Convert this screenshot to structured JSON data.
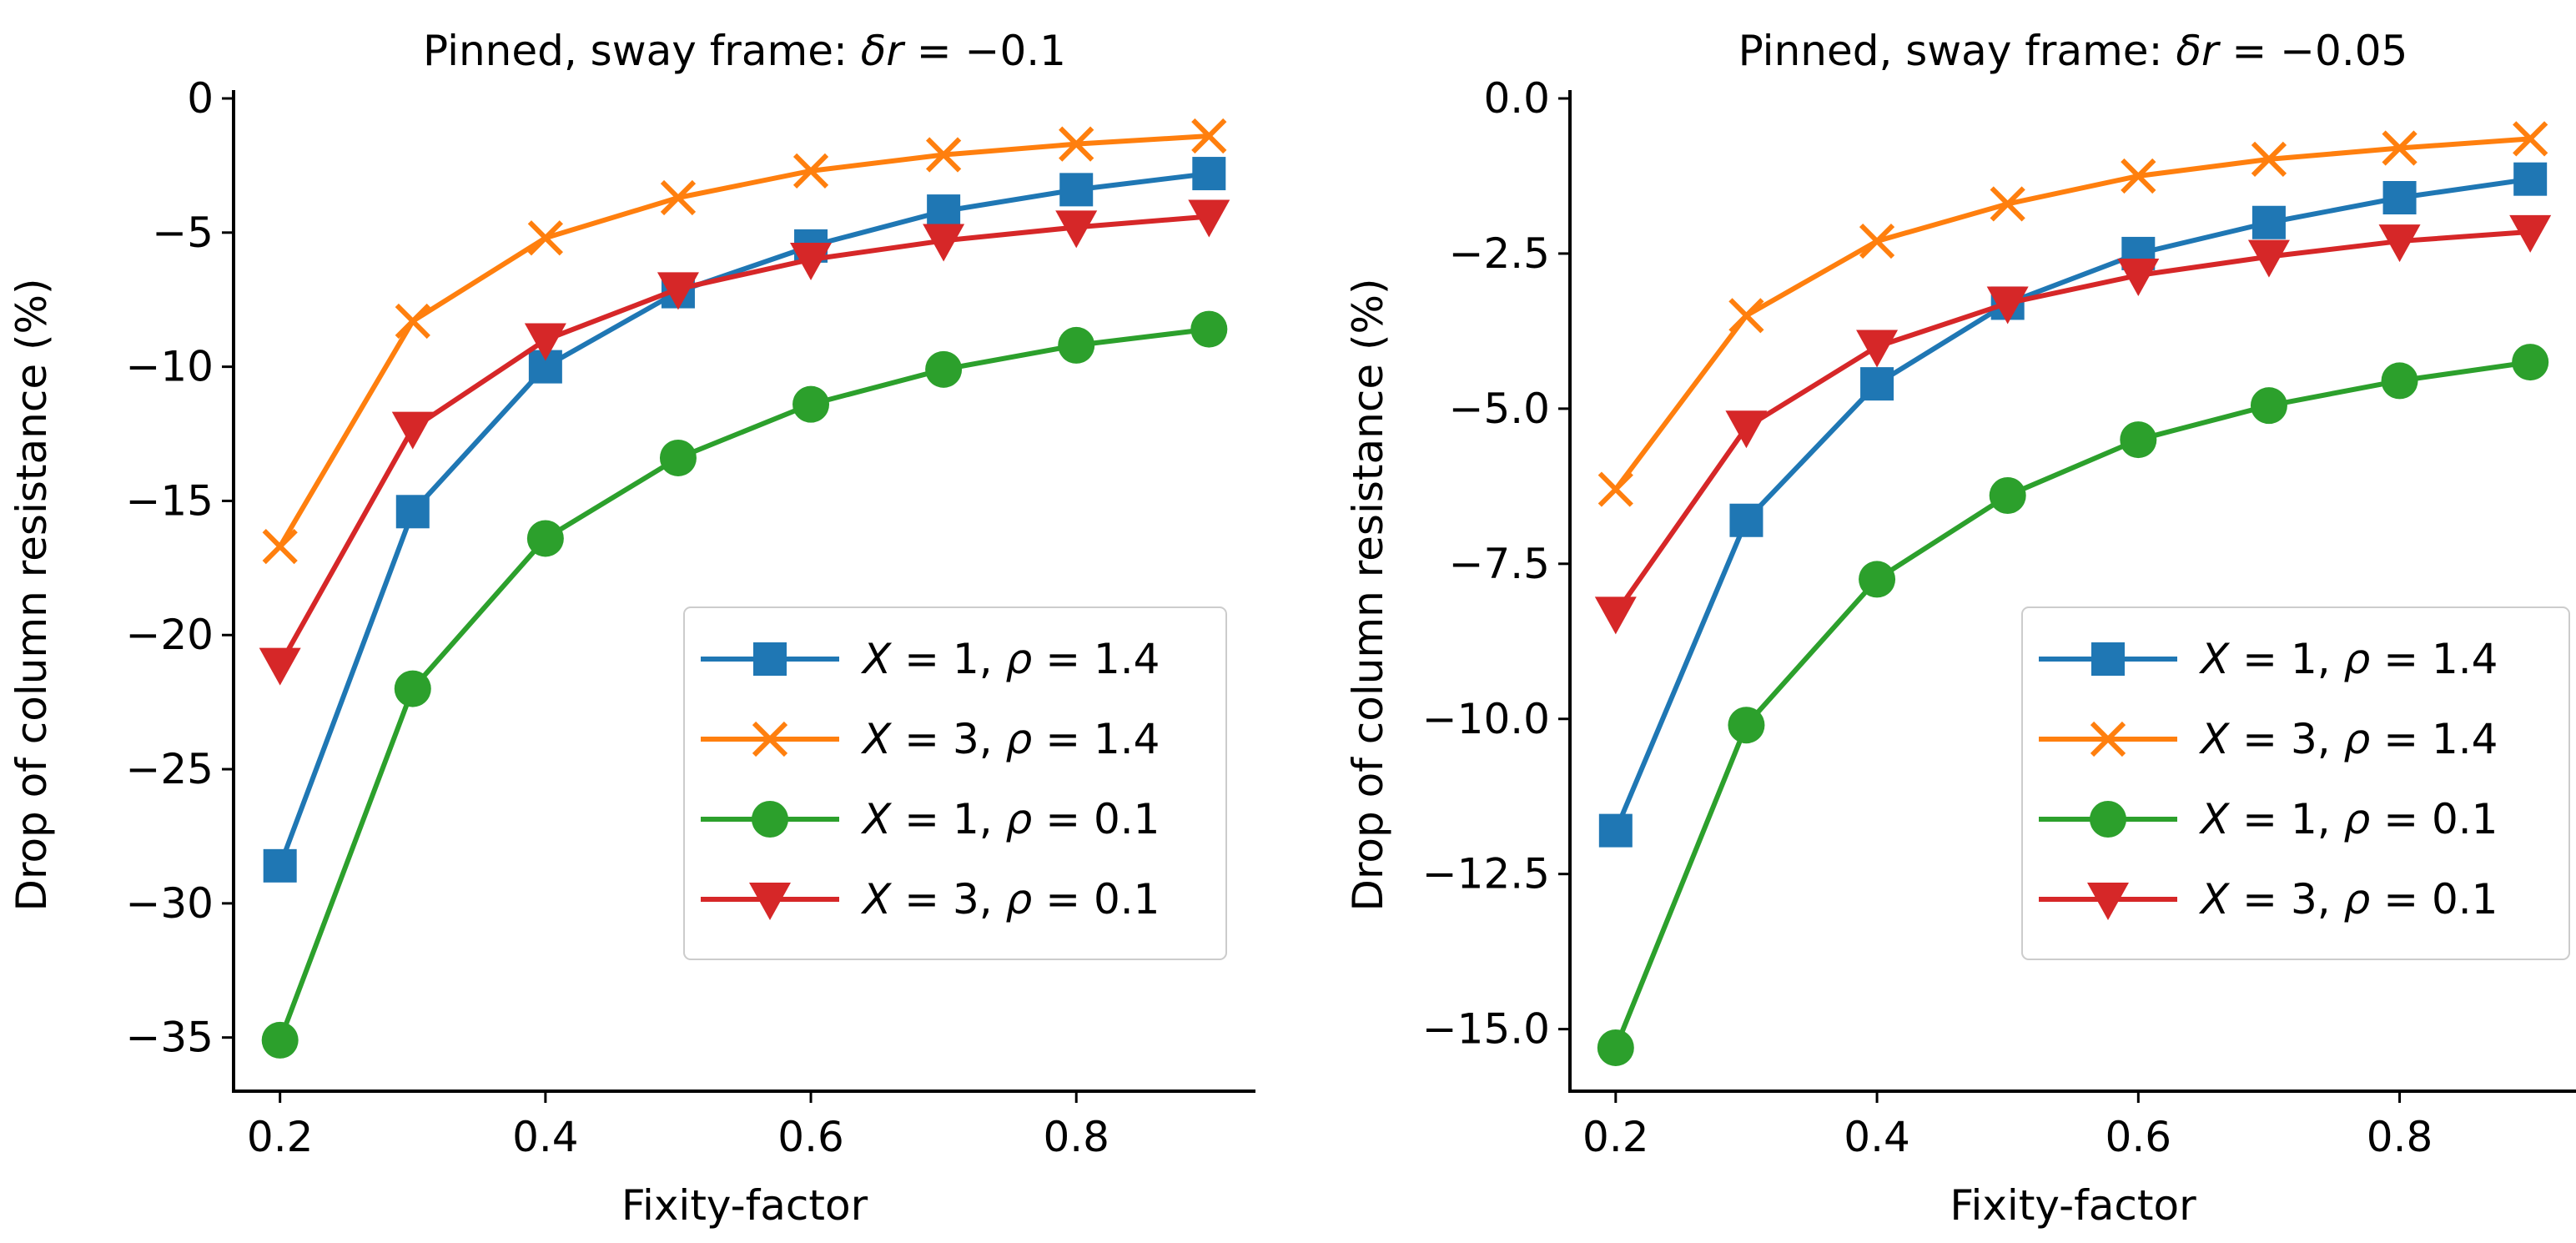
{
  "chart_data": [
    {
      "type": "line",
      "title_prefix": "Pinned, sway frame: ",
      "title_var": "δr",
      "title_suffix": " = −0.1",
      "xlabel": "Fixity-factor",
      "ylabel": "Drop of column resistance (%)",
      "xlim": [
        0.165,
        0.935
      ],
      "ylim": [
        -37,
        0
      ],
      "xticks": [
        0.2,
        0.4,
        0.6,
        0.8
      ],
      "xtick_labels": [
        "0.2",
        "0.4",
        "0.6",
        "0.8"
      ],
      "yticks": [
        0,
        -5,
        -10,
        -15,
        -20,
        -25,
        -30,
        -35
      ],
      "ytick_labels": [
        "0",
        "−5",
        "−10",
        "−15",
        "−20",
        "−25",
        "−30",
        "−35"
      ],
      "legend_position": "lower-right",
      "x": [
        0.2,
        0.3,
        0.4,
        0.5,
        0.6,
        0.7,
        0.8,
        0.9
      ],
      "series": [
        {
          "var1": "X",
          "val1": " = 1, ",
          "var2": "ρ",
          "val2": " = 1.4",
          "color": "#1f77b4",
          "marker": "square",
          "values": [
            -28.6,
            -15.4,
            -10.0,
            -7.2,
            -5.5,
            -4.2,
            -3.4,
            -2.8
          ]
        },
        {
          "var1": "X",
          "val1": " = 3, ",
          "var2": "ρ",
          "val2": " = 1.4",
          "color": "#ff7f0e",
          "marker": "x",
          "values": [
            -16.7,
            -8.3,
            -5.2,
            -3.7,
            -2.7,
            -2.1,
            -1.7,
            -1.4
          ]
        },
        {
          "var1": "X",
          "val1": " = 1, ",
          "var2": "ρ",
          "val2": " = 0.1",
          "color": "#2ca02c",
          "marker": "circle",
          "values": [
            -35.1,
            -22.0,
            -16.4,
            -13.4,
            -11.4,
            -10.1,
            -9.2,
            -8.6
          ]
        },
        {
          "var1": "X",
          "val1": " = 3, ",
          "var2": "ρ",
          "val2": " = 0.1",
          "color": "#d62728",
          "marker": "triangle-down",
          "values": [
            -21.1,
            -12.3,
            -9.0,
            -7.1,
            -6.0,
            -5.3,
            -4.8,
            -4.4
          ]
        }
      ]
    },
    {
      "type": "line",
      "title_prefix": "Pinned, sway frame: ",
      "title_var": "δr",
      "title_suffix": " = −0.05",
      "xlabel": "Fixity-factor",
      "ylabel": "Drop of column resistance (%)",
      "xlim": [
        0.165,
        0.935
      ],
      "ylim": [
        -16,
        0
      ],
      "xticks": [
        0.2,
        0.4,
        0.6,
        0.8
      ],
      "xtick_labels": [
        "0.2",
        "0.4",
        "0.6",
        "0.8"
      ],
      "yticks": [
        0,
        -2.5,
        -5,
        -7.5,
        -10,
        -12.5,
        -15
      ],
      "ytick_labels": [
        "0.0",
        "−2.5",
        "−5.0",
        "−7.5",
        "−10.0",
        "−12.5",
        "−15.0"
      ],
      "legend_position": "lower-right",
      "x": [
        0.2,
        0.3,
        0.4,
        0.5,
        0.6,
        0.7,
        0.8,
        0.9
      ],
      "series": [
        {
          "var1": "X",
          "val1": " = 1, ",
          "var2": "ρ",
          "val2": " = 1.4",
          "color": "#1f77b4",
          "marker": "square",
          "values": [
            -11.8,
            -6.8,
            -4.6,
            -3.3,
            -2.5,
            -2.0,
            -1.6,
            -1.3
          ]
        },
        {
          "var1": "X",
          "val1": " = 3, ",
          "var2": "ρ",
          "val2": " = 1.4",
          "color": "#ff7f0e",
          "marker": "x",
          "values": [
            -6.3,
            -3.5,
            -2.3,
            -1.7,
            -1.25,
            -0.98,
            -0.8,
            -0.65
          ]
        },
        {
          "var1": "X",
          "val1": " = 1, ",
          "var2": "ρ",
          "val2": " = 0.1",
          "color": "#2ca02c",
          "marker": "circle",
          "values": [
            -15.3,
            -10.1,
            -7.75,
            -6.4,
            -5.5,
            -4.95,
            -4.55,
            -4.25
          ]
        },
        {
          "var1": "X",
          "val1": " = 3, ",
          "var2": "ρ",
          "val2": " = 0.1",
          "color": "#d62728",
          "marker": "triangle-down",
          "values": [
            -8.3,
            -5.3,
            -4.0,
            -3.3,
            -2.85,
            -2.55,
            -2.3,
            -2.15
          ]
        }
      ]
    }
  ]
}
